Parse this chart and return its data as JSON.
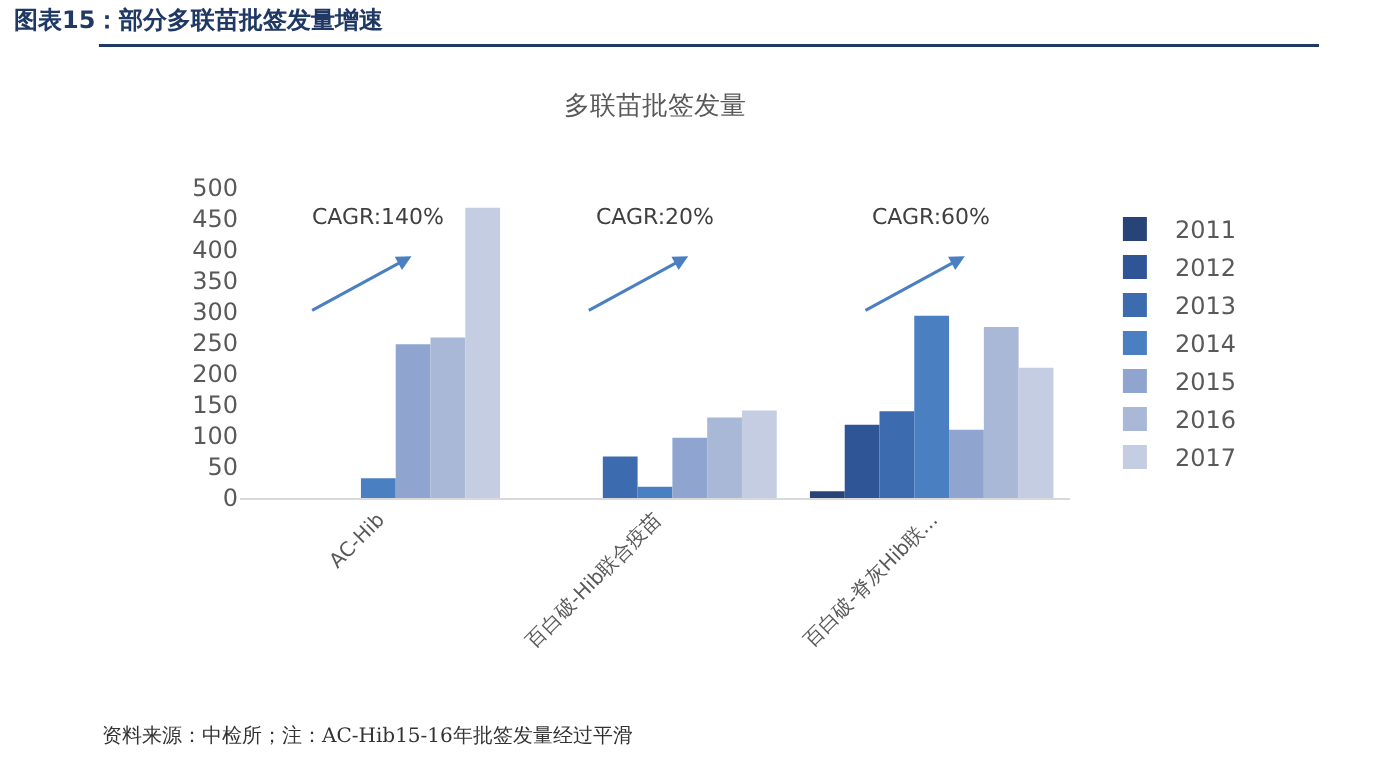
{
  "chart_data": {
    "type": "bar",
    "title": "图表15：部分多联苗批签发量增速",
    "subtitle": "多联苗批签发量",
    "categories": [
      "AC-Hib",
      "百白破-Hib联合疫苗",
      "百白破-脊灰Hib联..."
    ],
    "series": [
      {
        "name": "2011",
        "color": "#264478",
        "values": [
          null,
          null,
          11
        ]
      },
      {
        "name": "2012",
        "color": "#2f5597",
        "values": [
          null,
          null,
          118
        ]
      },
      {
        "name": "2013",
        "color": "#3c6bb0",
        "values": [
          null,
          67,
          140
        ]
      },
      {
        "name": "2014",
        "color": "#4a7fc1",
        "values": [
          32,
          18,
          294
        ]
      },
      {
        "name": "2015",
        "color": "#8fa5cf",
        "values": [
          248,
          97,
          110
        ]
      },
      {
        "name": "2016",
        "color": "#aab8d8",
        "values": [
          259,
          130,
          276
        ]
      },
      {
        "name": "2017",
        "color": "#c5cde2",
        "values": [
          468,
          141,
          210
        ]
      }
    ],
    "ylim": [
      0,
      500
    ],
    "yticks": [
      0,
      50,
      100,
      150,
      200,
      250,
      300,
      350,
      400,
      450,
      500
    ],
    "grid": false,
    "legend": "right",
    "annotations": [
      "CAGR:140%",
      "CAGR:20%",
      "CAGR:60%",
      "资料来源：中检所；注：AC-Hib15-16年批签发量经过平滑"
    ]
  }
}
